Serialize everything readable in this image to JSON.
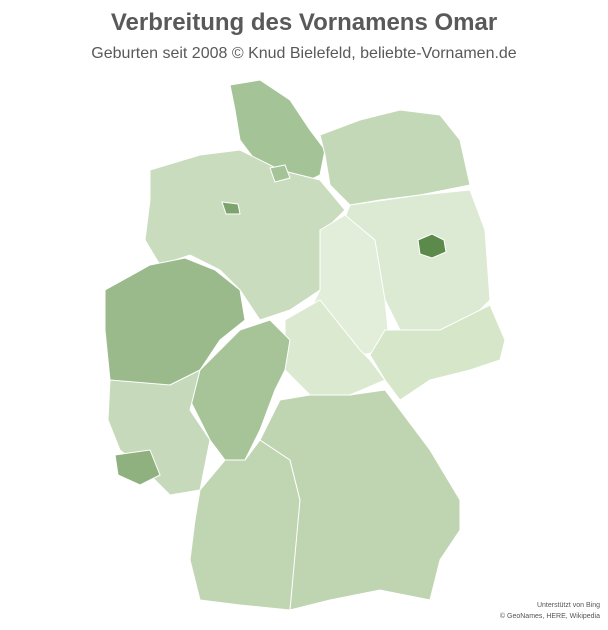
{
  "header": {
    "title": "Verbreitung des Vornamens Omar",
    "subtitle": "Geburten seit 2008 © Knud Bielefeld, beliebte-Vornamen.de"
  },
  "attribution": {
    "line1": "Unterstützt von Bing",
    "line2": "© GeoNames, HERE, Wikipedia"
  }
}
